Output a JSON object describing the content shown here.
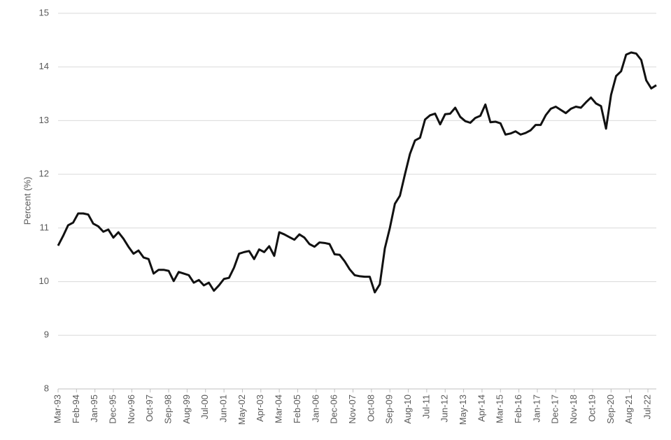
{
  "chart_data": {
    "type": "line",
    "y_label": "Percent (%)",
    "x": [
      "Mar-93",
      "Jun-93",
      "Sep-93",
      "Dec-93",
      "Mar-94",
      "Jun-94",
      "Sep-94",
      "Dec-94",
      "Mar-95",
      "Jun-95",
      "Sep-95",
      "Dec-95",
      "Mar-96",
      "Jun-96",
      "Sep-96",
      "Dec-96",
      "Mar-97",
      "Jun-97",
      "Sep-97",
      "Dec-97",
      "Mar-98",
      "Jun-98",
      "Sep-98",
      "Dec-98",
      "Mar-99",
      "Jun-99",
      "Sep-99",
      "Dec-99",
      "Mar-00",
      "Jun-00",
      "Sep-00",
      "Dec-00",
      "Mar-01",
      "Jun-01",
      "Sep-01",
      "Dec-01",
      "Mar-02",
      "Jun-02",
      "Sep-02",
      "Dec-02",
      "Mar-03",
      "Jun-03",
      "Sep-03",
      "Dec-03",
      "Mar-04",
      "Jun-04",
      "Sep-04",
      "Dec-04",
      "Mar-05",
      "Jun-05",
      "Sep-05",
      "Dec-05",
      "Mar-06",
      "Jun-06",
      "Sep-06",
      "Dec-06",
      "Mar-07",
      "Jun-07",
      "Sep-07",
      "Dec-07",
      "Mar-08",
      "Jun-08",
      "Sep-08",
      "Dec-08",
      "Mar-09",
      "Jun-09",
      "Sep-09",
      "Dec-09",
      "Mar-10",
      "Jun-10",
      "Sep-10",
      "Dec-10",
      "Mar-11",
      "Jun-11",
      "Sep-11",
      "Dec-11",
      "Mar-12",
      "Jun-12",
      "Sep-12",
      "Dec-12",
      "Mar-13",
      "Jun-13",
      "Sep-13",
      "Dec-13",
      "Mar-14",
      "Jun-14",
      "Sep-14",
      "Dec-14",
      "Mar-15",
      "Jun-15",
      "Sep-15",
      "Dec-15",
      "Mar-16",
      "Jun-16",
      "Sep-16",
      "Dec-16",
      "Mar-17",
      "Jun-17",
      "Sep-17",
      "Dec-17",
      "Mar-18",
      "Jun-18",
      "Sep-18",
      "Dec-18",
      "Mar-19",
      "Jun-19",
      "Sep-19",
      "Dec-19",
      "Mar-20",
      "Jun-20",
      "Sep-20",
      "Dec-20",
      "Mar-21",
      "Jun-21",
      "Sep-21",
      "Dec-21",
      "Mar-22",
      "Jun-22",
      "Sep-22",
      "Dec-22"
    ],
    "series": [
      {
        "name": "Percent",
        "color": "#111111",
        "values": [
          10.67,
          10.85,
          11.05,
          11.1,
          11.27,
          11.27,
          11.25,
          11.08,
          11.03,
          10.93,
          10.97,
          10.82,
          10.92,
          10.8,
          10.65,
          10.52,
          10.58,
          10.45,
          10.42,
          10.15,
          10.22,
          10.22,
          10.2,
          10.01,
          10.18,
          10.15,
          10.12,
          9.98,
          10.03,
          9.93,
          9.98,
          9.83,
          9.93,
          10.05,
          10.07,
          10.26,
          10.52,
          10.55,
          10.57,
          10.42,
          10.6,
          10.55,
          10.66,
          10.48,
          10.92,
          10.88,
          10.83,
          10.78,
          10.88,
          10.82,
          10.7,
          10.65,
          10.73,
          10.72,
          10.7,
          10.51,
          10.5,
          10.38,
          10.23,
          10.12,
          10.1,
          10.09,
          10.09,
          9.8,
          9.95,
          10.62,
          11.0,
          11.45,
          11.6,
          12.0,
          12.38,
          12.63,
          12.68,
          13.02,
          13.1,
          13.13,
          12.93,
          13.12,
          13.13,
          13.24,
          13.07,
          12.99,
          12.96,
          13.05,
          13.09,
          13.3,
          12.97,
          12.98,
          12.95,
          12.74,
          12.76,
          12.8,
          12.74,
          12.77,
          12.82,
          12.92,
          12.92,
          13.1,
          13.22,
          13.26,
          13.2,
          13.14,
          13.22,
          13.26,
          13.24,
          13.34,
          13.43,
          13.32,
          13.27,
          12.85,
          13.48,
          13.83,
          13.92,
          14.23,
          14.27,
          14.25,
          14.13,
          13.75,
          13.6,
          13.66
        ]
      }
    ],
    "xlim": [
      "Mar-93",
      "Dec-22"
    ],
    "xticks": [
      "Mar-93",
      "Feb-94",
      "Jan-95",
      "Dec-95",
      "Nov-96",
      "Oct-97",
      "Sep-98",
      "Aug-99",
      "Jul-00",
      "Jun-01",
      "May-02",
      "Apr-03",
      "Mar-04",
      "Feb-05",
      "Jan-06",
      "Dec-06",
      "Nov-07",
      "Oct-08",
      "Sep-09",
      "Aug-10",
      "Jul-11",
      "Jun-12",
      "May-13",
      "Apr-14",
      "Mar-15",
      "Feb-16",
      "Jan-17",
      "Dec-17",
      "Nov-18",
      "Oct-19",
      "Sep-20",
      "Aug-21",
      "Jul-22"
    ],
    "ylim": [
      8,
      15
    ],
    "yticks": [
      8,
      9,
      10,
      11,
      12,
      13,
      14,
      15
    ],
    "grid": true
  }
}
